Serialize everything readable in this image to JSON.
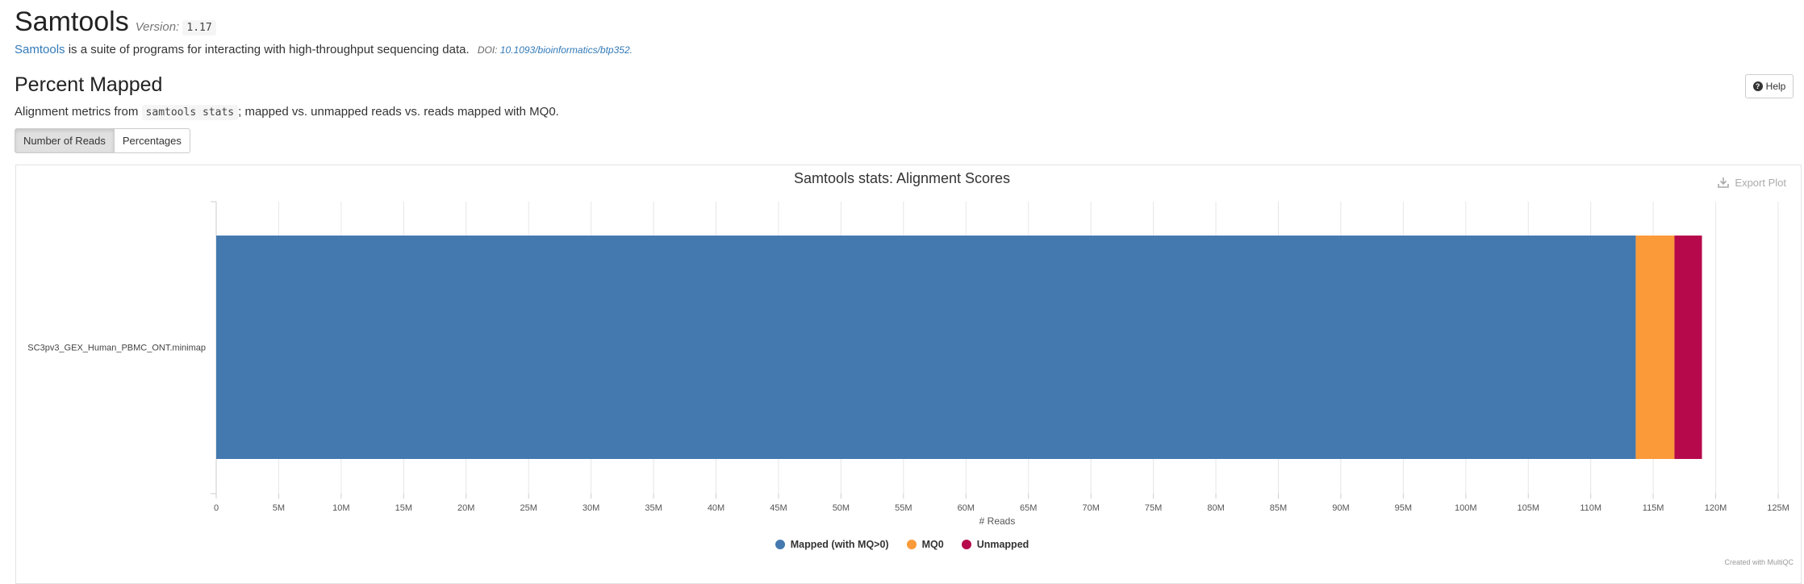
{
  "module": {
    "title": "Samtools",
    "version_label": "Version:",
    "version": "1.17",
    "link_text": "Samtools",
    "description": " is a suite of programs for interacting with high-throughput sequencing data.",
    "doi_label": "DOI:",
    "doi": "10.1093/bioinformatics/btp352."
  },
  "section": {
    "title": "Percent Mapped",
    "help_label": "Help",
    "desc_prefix": "Alignment metrics from ",
    "desc_code": "samtools stats",
    "desc_suffix": "; mapped vs. unmapped reads vs. reads mapped with MQ0.",
    "buttons": [
      "Number of Reads",
      "Percentages"
    ]
  },
  "plot": {
    "export_label": "Export Plot",
    "credit": "Created with MultiQC"
  },
  "colors": {
    "mapped": "#4479b0",
    "mq0": "#fb9a39",
    "unmapped": "#b6094c"
  },
  "chart_data": {
    "type": "bar",
    "orientation": "horizontal",
    "stacked": true,
    "title": "Samtools stats: Alignment Scores",
    "xlabel": "# Reads",
    "ylabel": "",
    "categories": [
      "SC3pv3_GEX_Human_PBMC_ONT.minimap"
    ],
    "series": [
      {
        "name": "Mapped (with MQ>0)",
        "values": [
          113600000
        ]
      },
      {
        "name": "MQ0",
        "values": [
          3100000
        ]
      },
      {
        "name": "Unmapped",
        "values": [
          2200000
        ]
      }
    ],
    "xlim": [
      0,
      125000000
    ],
    "xticks": [
      "0",
      "5M",
      "10M",
      "15M",
      "20M",
      "25M",
      "30M",
      "35M",
      "40M",
      "45M",
      "50M",
      "55M",
      "60M",
      "65M",
      "70M",
      "75M",
      "80M",
      "85M",
      "90M",
      "95M",
      "100M",
      "105M",
      "110M",
      "115M",
      "120M",
      "125M"
    ],
    "grid": true,
    "legend": "bottom"
  }
}
